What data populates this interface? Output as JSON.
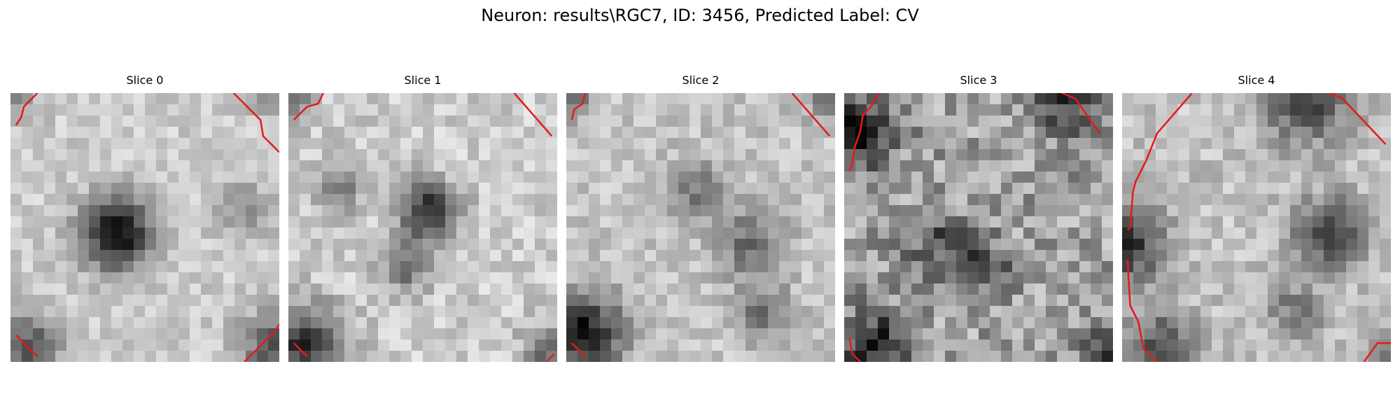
{
  "figure": {
    "suptitle": "Neuron: results\\RGC7, ID: 3456, Predicted Label: CV"
  },
  "panels": [
    {
      "title": "Slice 0"
    },
    {
      "title": "Slice 1"
    },
    {
      "title": "Slice 2"
    },
    {
      "title": "Slice 3"
    },
    {
      "title": "Slice 4"
    }
  ],
  "colors": {
    "contour": "#e41a1c",
    "colormap": "gray"
  }
}
